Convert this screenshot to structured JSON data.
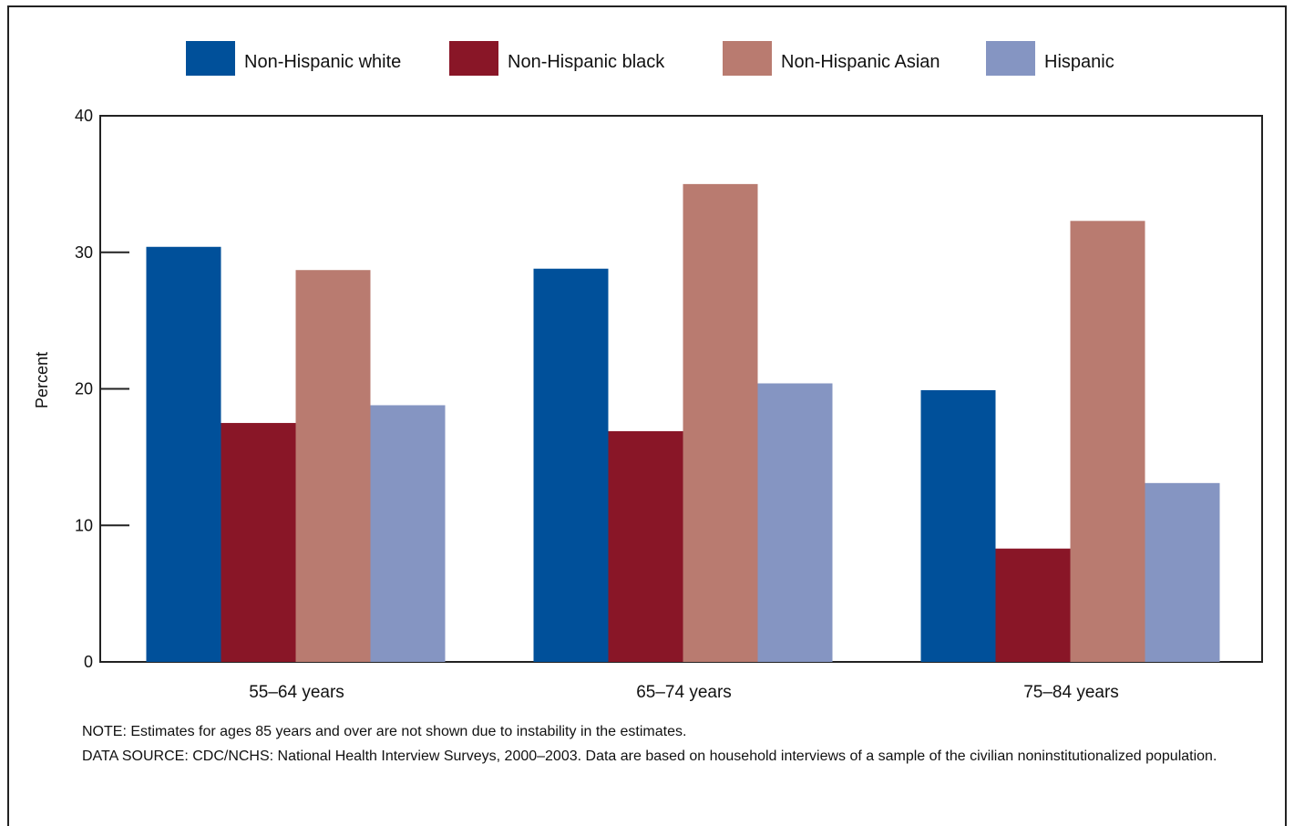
{
  "chart_data": {
    "type": "bar",
    "categories": [
      "55–64 years",
      "65–74 years",
      "75–84 years"
    ],
    "series": [
      {
        "name": "Non-Hispanic white",
        "color": "#00509a",
        "values": [
          30.4,
          28.8,
          19.9
        ]
      },
      {
        "name": "Non-Hispanic black",
        "color": "#891627",
        "values": [
          17.5,
          16.9,
          8.3
        ]
      },
      {
        "name": "Non-Hispanic Asian",
        "color": "#b97b70",
        "values": [
          28.7,
          35.0,
          32.3
        ]
      },
      {
        "name": "Hispanic",
        "color": "#8595c2",
        "values": [
          18.8,
          20.4,
          13.1
        ]
      }
    ],
    "ylabel": "Percent",
    "xlabel": "",
    "ylim": [
      0,
      40
    ],
    "yticks": [
      0,
      10,
      20,
      30,
      40
    ],
    "grid": false,
    "legend_position": "top"
  },
  "notes": {
    "note": "NOTE: Estimates for ages 85 years and over are not shown due to instability in the estimates.",
    "source": "DATA SOURCE: CDC/NCHS: National Health Interview Surveys, 2000–2003. Data are based on household interviews of a sample of the civilian noninstitutionalized population."
  }
}
